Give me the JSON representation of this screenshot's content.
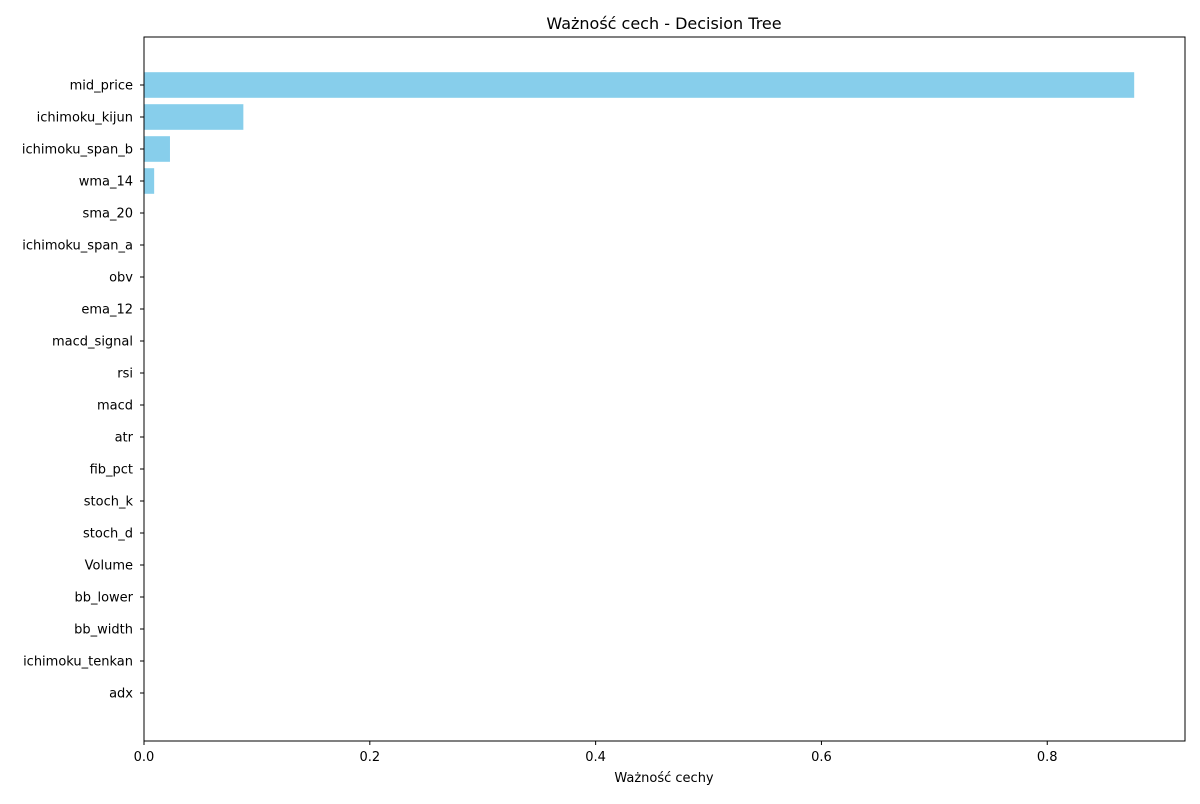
{
  "chart_data": {
    "type": "bar",
    "orientation": "horizontal",
    "title": "Ważność cech - Decision Tree",
    "xlabel": "Ważność cechy",
    "ylabel": "",
    "xlim": [
      0,
      0.922
    ],
    "xticks": [
      0.0,
      0.2,
      0.4,
      0.6,
      0.8
    ],
    "xtick_labels": [
      "0.0",
      "0.2",
      "0.4",
      "0.6",
      "0.8"
    ],
    "grid": false,
    "bar_color": "#87ceeb",
    "categories": [
      "mid_price",
      "ichimoku_kijun",
      "ichimoku_span_b",
      "wma_14",
      "sma_20",
      "ichimoku_span_a",
      "obv",
      "ema_12",
      "macd_signal",
      "rsi",
      "macd",
      "atr",
      "fib_pct",
      "stoch_k",
      "stoch_d",
      "Volume",
      "bb_lower",
      "bb_width",
      "ichimoku_tenkan",
      "adx"
    ],
    "values": [
      0.877,
      0.088,
      0.023,
      0.009,
      0,
      0,
      0,
      0,
      0,
      0,
      0,
      0,
      0,
      0,
      0,
      0,
      0,
      0,
      0,
      0
    ]
  }
}
